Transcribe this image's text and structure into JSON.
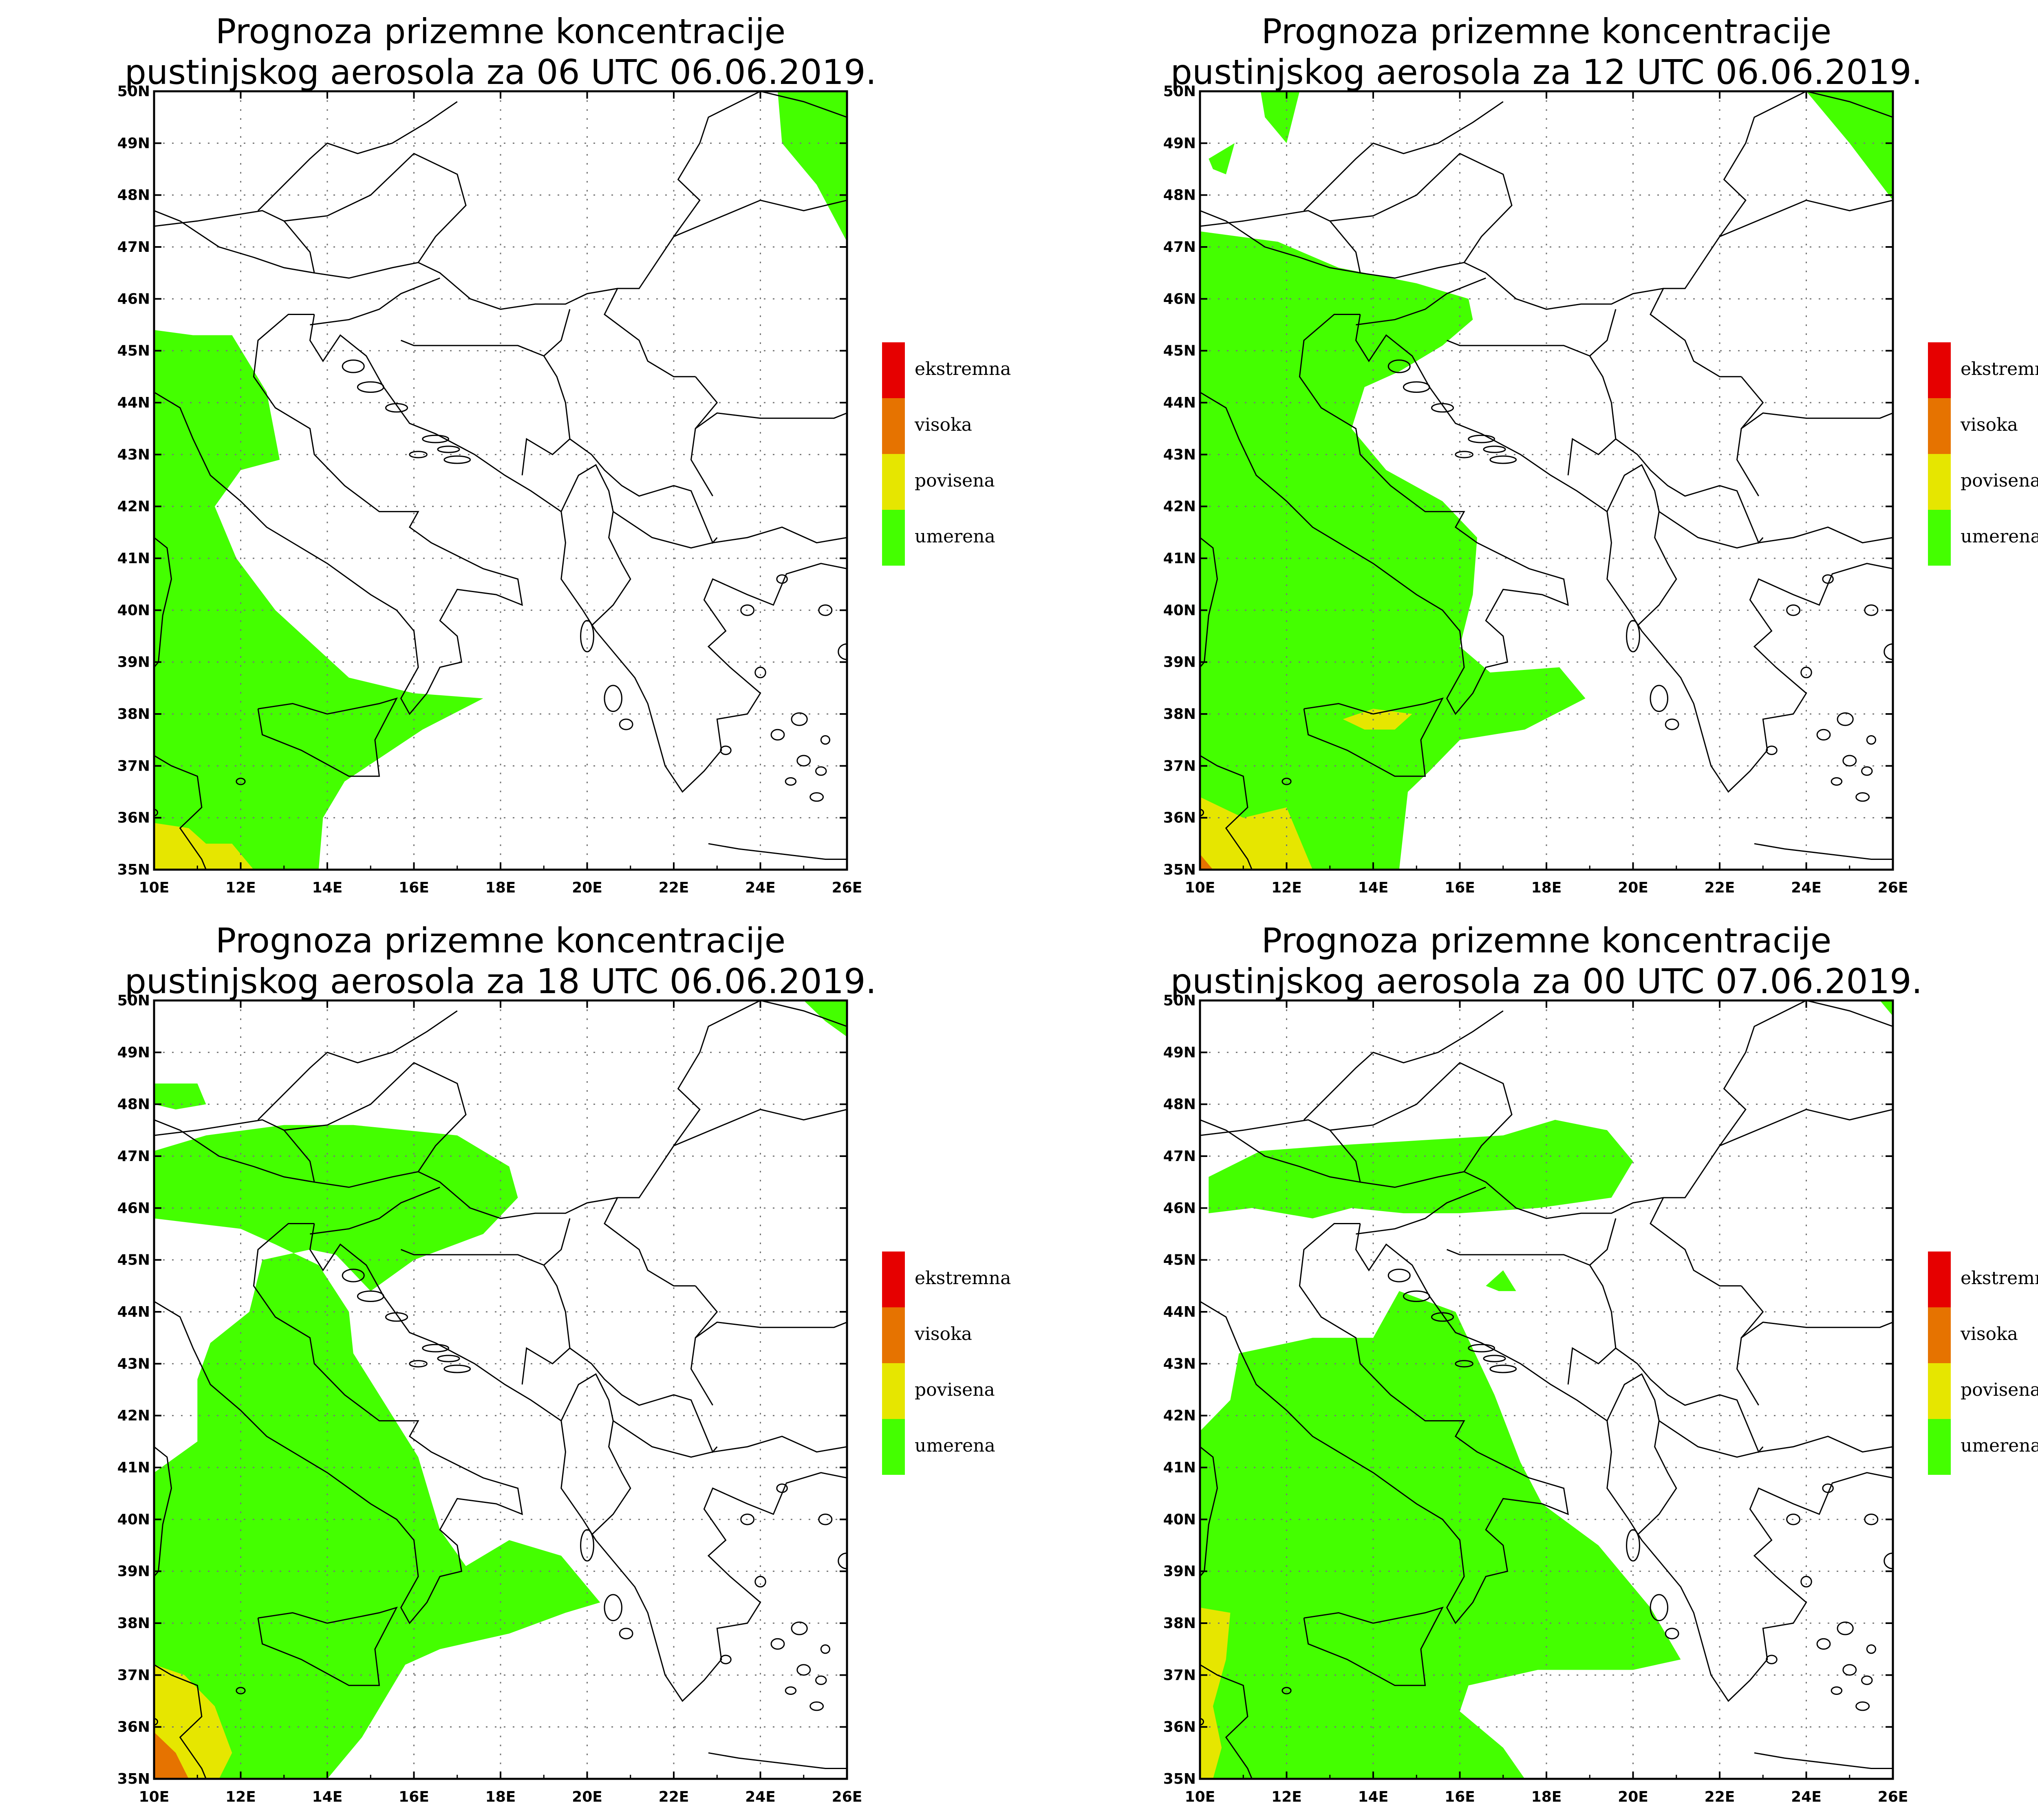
{
  "colors": {
    "umerena": "#44ff00",
    "povisena": "#e6e600",
    "visoka": "#e67300",
    "ekstremna": "#e60000",
    "border": "#000000",
    "grid": "#888888"
  },
  "legend": {
    "items": [
      {
        "label": "ekstremna",
        "color": "#e60000"
      },
      {
        "label": "visoka",
        "color": "#e67300"
      },
      {
        "label": "povisena",
        "color": "#e6e600"
      },
      {
        "label": "umerena",
        "color": "#44ff00"
      }
    ]
  },
  "axes": {
    "lon_ticks": [
      "10E",
      "12E",
      "14E",
      "16E",
      "18E",
      "20E",
      "22E",
      "24E",
      "26E"
    ],
    "lat_ticks": [
      "35N",
      "36N",
      "37N",
      "38N",
      "39N",
      "40N",
      "41N",
      "42N",
      "43N",
      "44N",
      "45N",
      "46N",
      "47N",
      "48N",
      "49N",
      "50N"
    ],
    "lon_range": [
      10,
      26
    ],
    "lat_range": [
      35,
      50
    ]
  },
  "panels": [
    {
      "title_line1": "Prognoza prizemne koncentracije",
      "title_line2": "pustinjskog aerosola za 06 UTC 06.06.2019.",
      "areas": [
        {
          "level": "umerena",
          "points": [
            [
              10,
              45.4
            ],
            [
              10.9,
              45.3
            ],
            [
              11.8,
              45.3
            ],
            [
              12.6,
              44.2
            ],
            [
              12.9,
              42.9
            ],
            [
              12.0,
              42.7
            ],
            [
              11.4,
              42.0
            ],
            [
              11.9,
              41.0
            ],
            [
              12.8,
              40.0
            ],
            [
              14.5,
              38.7
            ],
            [
              16.0,
              38.4
            ],
            [
              17.6,
              38.3
            ],
            [
              16.2,
              37.7
            ],
            [
              14.4,
              36.7
            ],
            [
              13.9,
              36.0
            ],
            [
              13.8,
              35.0
            ],
            [
              10,
              35.0
            ]
          ]
        },
        {
          "level": "umerena",
          "points": [
            [
              24.4,
              50.0
            ],
            [
              26.0,
              50.0
            ],
            [
              26.0,
              47.1
            ],
            [
              25.3,
              48.2
            ],
            [
              24.5,
              49.0
            ]
          ]
        },
        {
          "level": "povisena",
          "points": [
            [
              10,
              35.9
            ],
            [
              10.8,
              35.8
            ],
            [
              11.2,
              35.5
            ],
            [
              11.8,
              35.5
            ],
            [
              12.3,
              35.0
            ],
            [
              10,
              35.0
            ]
          ]
        }
      ]
    },
    {
      "title_line1": "Prognoza prizemne koncentracije",
      "title_line2": "pustinjskog aerosola za 12 UTC 06.06.2019.",
      "areas": [
        {
          "level": "umerena",
          "points": [
            [
              10,
              47.3
            ],
            [
              11.8,
              47.1
            ],
            [
              13.2,
              46.6
            ],
            [
              15.0,
              46.3
            ],
            [
              16.2,
              46.0
            ],
            [
              16.3,
              45.6
            ],
            [
              15.6,
              45.1
            ],
            [
              14.6,
              44.6
            ],
            [
              13.8,
              44.3
            ],
            [
              13.5,
              43.5
            ],
            [
              14.3,
              42.7
            ],
            [
              15.6,
              42.1
            ],
            [
              16.4,
              41.4
            ],
            [
              16.3,
              40.3
            ],
            [
              16.0,
              39.3
            ],
            [
              16.7,
              38.8
            ],
            [
              18.3,
              38.9
            ],
            [
              18.9,
              38.3
            ],
            [
              17.5,
              37.7
            ],
            [
              16.0,
              37.5
            ],
            [
              15.3,
              36.9
            ],
            [
              14.8,
              36.5
            ],
            [
              14.6,
              35.0
            ],
            [
              10.0,
              35.0
            ]
          ]
        },
        {
          "level": "umerena",
          "points": [
            [
              24.0,
              50.0
            ],
            [
              26.0,
              50.0
            ],
            [
              26.0,
              47.9
            ],
            [
              25.0,
              49.0
            ]
          ]
        },
        {
          "level": "umerena",
          "points": [
            [
              11.4,
              50.0
            ],
            [
              12.3,
              50.0
            ],
            [
              12.0,
              49.0
            ],
            [
              11.5,
              49.5
            ]
          ]
        },
        {
          "level": "umerena",
          "points": [
            [
              10.2,
              48.7
            ],
            [
              10.8,
              49.0
            ],
            [
              10.6,
              48.4
            ],
            [
              10.3,
              48.5
            ]
          ]
        },
        {
          "level": "povisena",
          "points": [
            [
              10,
              36.4
            ],
            [
              11.0,
              36.0
            ],
            [
              12.0,
              36.2
            ],
            [
              12.6,
              35.0
            ],
            [
              10,
              35.0
            ]
          ]
        },
        {
          "level": "povisena",
          "points": [
            [
              13.3,
              37.9
            ],
            [
              14.0,
              38.1
            ],
            [
              14.9,
              38.0
            ],
            [
              14.5,
              37.7
            ],
            [
              13.8,
              37.7
            ]
          ]
        },
        {
          "level": "visoka",
          "points": [
            [
              10,
              35.3
            ],
            [
              10.3,
              35.0
            ],
            [
              10,
              35.0
            ]
          ]
        }
      ]
    },
    {
      "title_line1": "Prognoza prizemne koncentracije",
      "title_line2": "pustinjskog aerosola za 18 UTC 06.06.2019.",
      "areas": [
        {
          "level": "umerena",
          "points": [
            [
              10,
              47.1
            ],
            [
              11.2,
              47.4
            ],
            [
              13.0,
              47.6
            ],
            [
              14.6,
              47.6
            ],
            [
              17.0,
              47.4
            ],
            [
              18.2,
              46.8
            ],
            [
              18.4,
              46.2
            ],
            [
              17.6,
              45.5
            ],
            [
              16.0,
              45.0
            ],
            [
              15.0,
              44.4
            ],
            [
              14.2,
              45.1
            ],
            [
              13.6,
              45.2
            ],
            [
              12.5,
              45.0
            ],
            [
              12.2,
              44.0
            ],
            [
              11.3,
              43.4
            ],
            [
              11.0,
              42.7
            ],
            [
              11.0,
              41.5
            ],
            [
              10,
              40.9
            ],
            [
              10.0,
              35.0
            ],
            [
              14.0,
              35.0
            ],
            [
              14.8,
              35.8
            ],
            [
              15.8,
              37.2
            ],
            [
              16.6,
              37.5
            ],
            [
              18.2,
              37.8
            ],
            [
              19.5,
              38.2
            ],
            [
              20.3,
              38.4
            ],
            [
              19.4,
              39.3
            ],
            [
              18.2,
              39.6
            ],
            [
              17.2,
              39.1
            ],
            [
              16.6,
              39.8
            ],
            [
              16.1,
              41.2
            ],
            [
              15.2,
              42.4
            ],
            [
              14.6,
              43.2
            ],
            [
              14.5,
              44.0
            ],
            [
              13.8,
              44.9
            ],
            [
              12.8,
              45.3
            ],
            [
              12.0,
              45.6
            ],
            [
              10.0,
              45.8
            ]
          ]
        },
        {
          "level": "umerena",
          "points": [
            [
              10.0,
              48.4
            ],
            [
              11.0,
              48.4
            ],
            [
              11.2,
              48.0
            ],
            [
              10.5,
              47.9
            ],
            [
              10.0,
              48.0
            ]
          ]
        },
        {
          "level": "umerena",
          "points": [
            [
              25.0,
              50.0
            ],
            [
              26.0,
              50.0
            ],
            [
              26.0,
              49.3
            ],
            [
              25.5,
              49.6
            ]
          ]
        },
        {
          "level": "povisena",
          "points": [
            [
              10,
              37.2
            ],
            [
              10.7,
              37.0
            ],
            [
              11.4,
              36.4
            ],
            [
              11.8,
              35.5
            ],
            [
              11.5,
              35.0
            ],
            [
              10,
              35.0
            ]
          ]
        },
        {
          "level": "visoka",
          "points": [
            [
              10,
              35.9
            ],
            [
              10.5,
              35.5
            ],
            [
              10.8,
              35.0
            ],
            [
              10,
              35.0
            ]
          ]
        }
      ]
    },
    {
      "title_line1": "Prognoza prizemne koncentracije",
      "title_line2": "pustinjskog aerosola za 00 UTC 07.06.2019.",
      "areas": [
        {
          "level": "umerena",
          "points": [
            [
              10.2,
              46.6
            ],
            [
              11.4,
              47.1
            ],
            [
              13.0,
              47.2
            ],
            [
              15.0,
              47.3
            ],
            [
              17.0,
              47.4
            ],
            [
              18.2,
              47.7
            ],
            [
              19.4,
              47.5
            ],
            [
              20.0,
              46.9
            ],
            [
              19.5,
              46.2
            ],
            [
              17.8,
              46.0
            ],
            [
              16.0,
              45.9
            ],
            [
              14.7,
              45.9
            ],
            [
              13.5,
              46.0
            ],
            [
              12.6,
              45.8
            ],
            [
              11.2,
              46.0
            ],
            [
              10.2,
              45.9
            ]
          ]
        },
        {
          "level": "umerena",
          "points": [
            [
              10.0,
              41.7
            ],
            [
              10.7,
              42.3
            ],
            [
              10.9,
              43.2
            ],
            [
              12.6,
              43.5
            ],
            [
              14.0,
              43.5
            ],
            [
              14.6,
              44.4
            ],
            [
              15.9,
              44.0
            ],
            [
              16.8,
              42.4
            ],
            [
              17.4,
              41.1
            ],
            [
              17.9,
              40.3
            ],
            [
              19.2,
              39.5
            ],
            [
              20.4,
              38.3
            ],
            [
              21.1,
              37.3
            ],
            [
              20.0,
              37.1
            ],
            [
              17.8,
              37.1
            ],
            [
              16.2,
              36.8
            ],
            [
              16.0,
              36.3
            ],
            [
              17.0,
              35.6
            ],
            [
              17.5,
              35.0
            ],
            [
              10.0,
              35.0
            ]
          ]
        },
        {
          "level": "umerena",
          "points": [
            [
              16.6,
              44.5
            ],
            [
              17.0,
              44.8
            ],
            [
              17.3,
              44.4
            ],
            [
              16.9,
              44.4
            ]
          ]
        },
        {
          "level": "umerena",
          "points": [
            [
              25.7,
              50.0
            ],
            [
              26.0,
              50.0
            ],
            [
              26.0,
              49.7
            ]
          ]
        },
        {
          "level": "povisena",
          "points": [
            [
              10,
              38.3
            ],
            [
              10.7,
              38.2
            ],
            [
              10.6,
              37.3
            ],
            [
              10.3,
              36.4
            ],
            [
              10.5,
              35.6
            ],
            [
              10.3,
              35.0
            ],
            [
              10,
              35.0
            ]
          ]
        }
      ]
    }
  ]
}
